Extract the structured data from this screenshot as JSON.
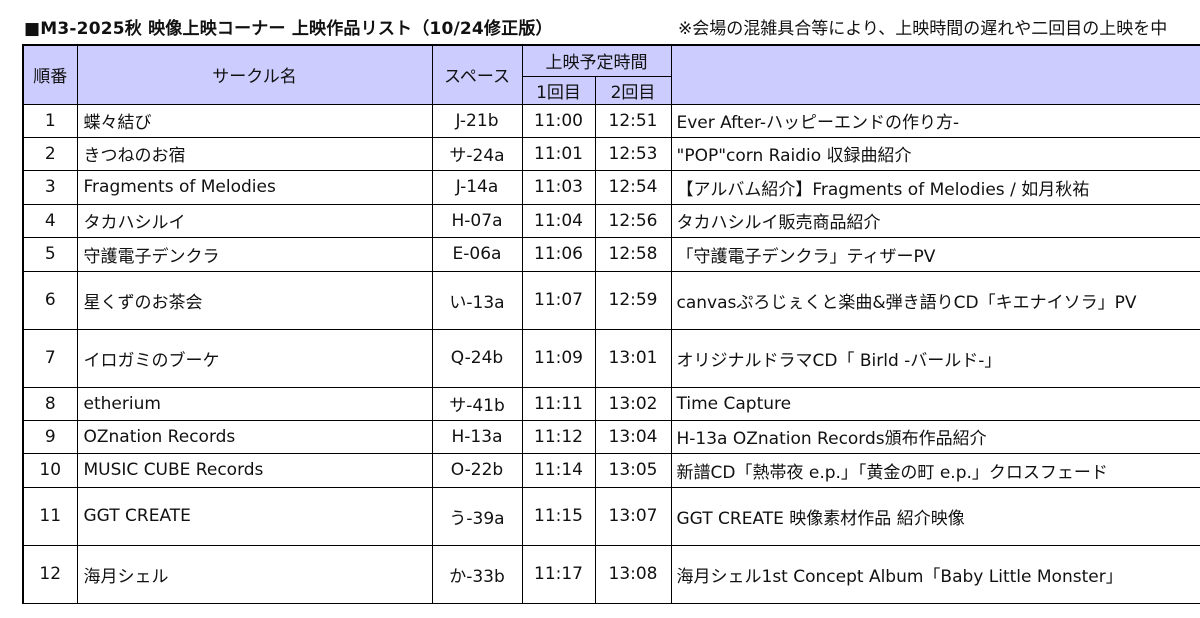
{
  "header": {
    "title": "■M3-2025秋 映像上映コーナー 上映作品リスト（10/24修正版）",
    "note": "※会場の混雑具合等により、上映時間の遅れや二回目の上映を中"
  },
  "columns": {
    "order": "順番",
    "circle": "サークル名",
    "space": "スペース",
    "schedule": "上映予定時間",
    "first": "1回目",
    "second": "2回目",
    "title": ""
  },
  "rows": [
    {
      "no": "1",
      "circle": "蝶々結び",
      "space": "J-21b",
      "first": "11:00",
      "second": "12:51",
      "title": "Ever After-ハッピーエンドの作り方-"
    },
    {
      "no": "2",
      "circle": "きつねのお宿",
      "space": "サ-24a",
      "first": "11:01",
      "second": "12:53",
      "title": "\"POP\"corn Raidio 収録曲紹介"
    },
    {
      "no": "3",
      "circle": "Fragments of Melodies",
      "space": "J-14a",
      "first": "11:03",
      "second": "12:54",
      "title": "【アルバム紹介】Fragments of Melodies / 如月秋祐"
    },
    {
      "no": "4",
      "circle": "タカハシルイ",
      "space": "H-07a",
      "first": "11:04",
      "second": "12:56",
      "title": "タカハシルイ販売商品紹介"
    },
    {
      "no": "5",
      "circle": "守護電子デンクラ",
      "space": "E-06a",
      "first": "11:06",
      "second": "12:58",
      "title": "「守護電子デンクラ」ティザーPV"
    },
    {
      "no": "6",
      "circle": "星くずのお茶会",
      "space": "い-13a",
      "first": "11:07",
      "second": "12:59",
      "title": "canvasぷろじぇくと楽曲&弾き語りCD「キエナイソラ」PV"
    },
    {
      "no": "7",
      "circle": "イロガミのブーケ",
      "space": "Q-24b",
      "first": "11:09",
      "second": "13:01",
      "title": "オリジナルドラマCD「 Birld -バールド-」"
    },
    {
      "no": "8",
      "circle": "etherium",
      "space": "サ-41b",
      "first": "11:11",
      "second": "13:02",
      "title": "Time Capture"
    },
    {
      "no": "9",
      "circle": "OZnation Records",
      "space": "H-13a",
      "first": "11:12",
      "second": "13:04",
      "title": "H-13a OZnation Records頒布作品紹介"
    },
    {
      "no": "10",
      "circle": "MUSIC CUBE Records",
      "space": "O-22b",
      "first": "11:14",
      "second": "13:05",
      "title": "新譜CD「熱帯夜 e.p.」「黄金の町 e.p.」クロスフェード"
    },
    {
      "no": "11",
      "circle": "GGT CREATE",
      "space": "う-39a",
      "first": "11:15",
      "second": "13:07",
      "title": "GGT CREATE 映像素材作品 紹介映像"
    },
    {
      "no": "12",
      "circle": "海月シェル",
      "space": "か-33b",
      "first": "11:17",
      "second": "13:08",
      "title": "海月シェル1st Concept Album「Baby Little Monster」"
    }
  ]
}
